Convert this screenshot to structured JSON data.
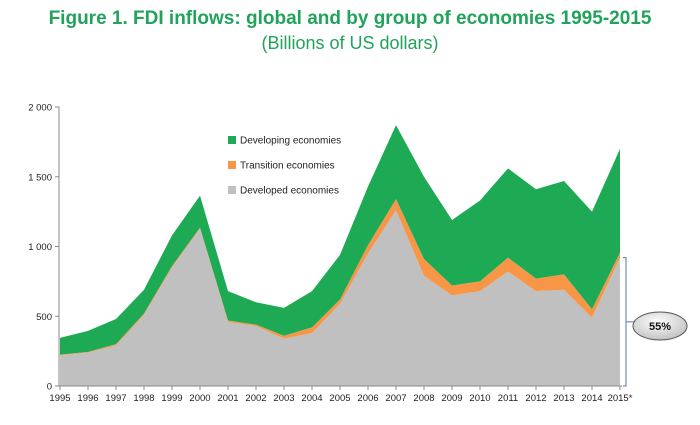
{
  "title": "Figure 1.  FDI inflows: global and by group of economies 1995-2015",
  "subtitle": "(Billions of US dollars)",
  "chart_data": {
    "type": "area",
    "stacked": true,
    "categories": [
      "1995",
      "1996",
      "1997",
      "1998",
      "1999",
      "2000",
      "2001",
      "2002",
      "2003",
      "2004",
      "2005",
      "2006",
      "2007",
      "2008",
      "2009",
      "2010",
      "2011",
      "2012",
      "2013",
      "2014",
      "2015*"
    ],
    "series": [
      {
        "name": "Developed economies",
        "color": "#c0c0c0",
        "values": [
          220,
          240,
          290,
          510,
          850,
          1130,
          460,
          430,
          340,
          380,
          590,
          950,
          1260,
          790,
          650,
          680,
          820,
          680,
          690,
          490,
          920
        ]
      },
      {
        "name": "Transition economies",
        "color": "#f79646",
        "values": [
          5,
          5,
          10,
          10,
          10,
          5,
          10,
          10,
          20,
          40,
          30,
          60,
          80,
          120,
          70,
          70,
          100,
          90,
          110,
          60,
          35
        ]
      },
      {
        "name": "Developing economies",
        "color": "#1eaa55",
        "values": [
          120,
          150,
          180,
          170,
          220,
          230,
          210,
          160,
          200,
          260,
          320,
          420,
          530,
          590,
          470,
          580,
          640,
          640,
          670,
          700,
          745
        ]
      }
    ],
    "ylim": [
      0,
      2000
    ],
    "yticks": [
      0,
      500,
      1000,
      1500,
      2000
    ],
    "ytick_labels": [
      "0",
      "500",
      "1 000",
      "1 500",
      "2 000"
    ],
    "legend_position": "upper-center",
    "annotation": {
      "label": "55%",
      "category": "2015*"
    }
  }
}
